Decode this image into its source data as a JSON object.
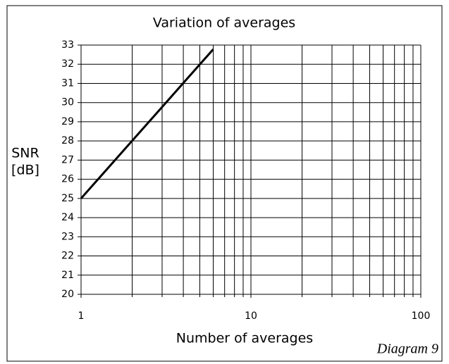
{
  "chart_data": {
    "type": "line",
    "title": "Variation of averages",
    "xlabel": "Number of averages",
    "ylabel": [
      "SNR",
      "[dB]"
    ],
    "caption": "Diagram 9",
    "xscale": "log",
    "xlim": [
      1,
      100
    ],
    "xticks": [
      1,
      10,
      100
    ],
    "xminor": [
      2,
      3,
      4,
      5,
      6,
      7,
      8,
      9,
      20,
      30,
      40,
      50,
      60,
      70,
      80,
      90
    ],
    "ylim": [
      20,
      33
    ],
    "yticks": [
      20,
      21,
      22,
      23,
      24,
      25,
      26,
      27,
      28,
      29,
      30,
      31,
      32,
      33
    ],
    "grid": true,
    "series": [
      {
        "name": "SNR",
        "color": "#000000",
        "x": [
          1,
          2,
          3,
          4,
          5,
          6
        ],
        "values": [
          25,
          28.01,
          29.77,
          31.02,
          31.99,
          32.78
        ]
      }
    ]
  }
}
